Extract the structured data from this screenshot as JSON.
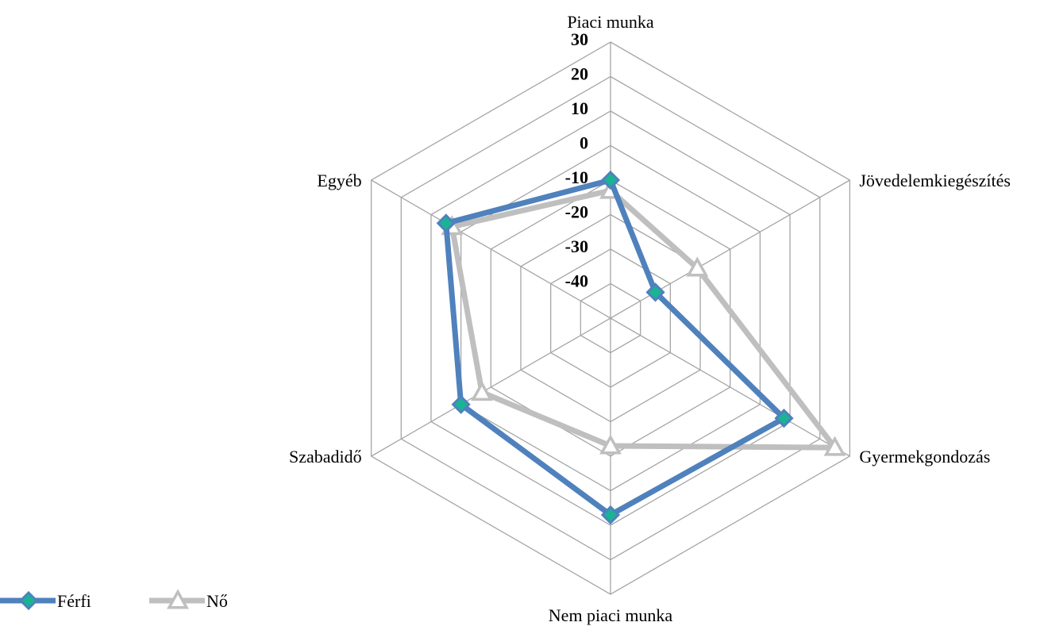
{
  "chart_data": {
    "type": "radar",
    "title": "",
    "categories": [
      "Piaci munka",
      "Jövedelemkiegészítés",
      "Gyermekgondozás",
      "Nem piaci munka",
      "Szabadidő",
      "Egyéb"
    ],
    "scale": {
      "min": -50,
      "max": 30,
      "step": 10
    },
    "ticks": [
      "-40",
      "-30",
      "-20",
      "-10",
      "0",
      "10",
      "20",
      "30"
    ],
    "grid": true,
    "legend_position": "bottom-left",
    "series": [
      {
        "name": "Férfi",
        "color": "#4f81bd",
        "marker": "diamond",
        "marker_fill": "#1ab394",
        "values": [
          -10,
          -35,
          8,
          7,
          0,
          5
        ]
      },
      {
        "name": "Nő",
        "color": "#bfbfbf",
        "marker": "triangle",
        "marker_fill": "#ffffff",
        "values": [
          -13,
          -21,
          25,
          -13,
          -7,
          3
        ]
      }
    ]
  }
}
